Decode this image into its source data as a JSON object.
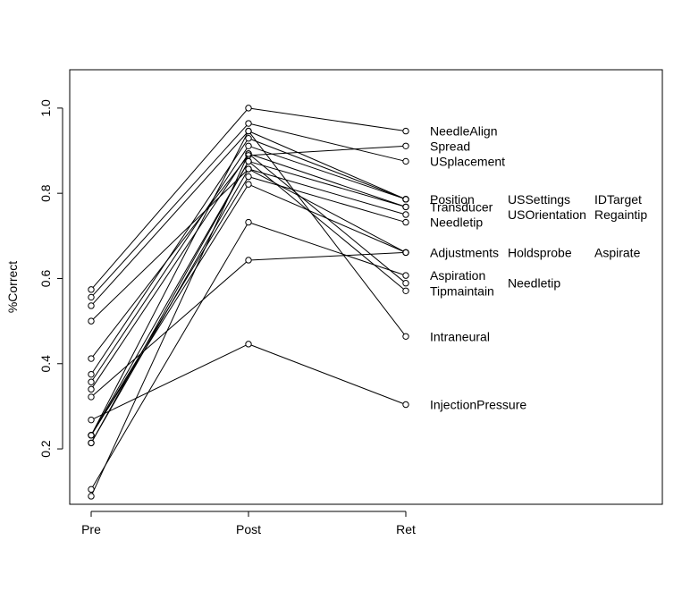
{
  "chart_data": {
    "type": "line",
    "title": "",
    "xlabel": "",
    "ylabel": "%Correct",
    "categories": [
      "Pre",
      "Post",
      "Ret"
    ],
    "ylim": [
      0.07,
      1.09
    ],
    "yticks": [
      "0.2",
      "0.4",
      "0.6",
      "0.8",
      "1.0"
    ],
    "grid": false,
    "point_style": "open-circle",
    "line_color": "#000000",
    "series": [
      {
        "name": "NeedleAlign",
        "values": [
          0.574,
          1.0,
          0.946
        ]
      },
      {
        "name": "Spread",
        "values": [
          0.412,
          0.889,
          0.911
        ]
      },
      {
        "name": "USplacement",
        "values": [
          0.556,
          0.964,
          0.875
        ]
      },
      {
        "name": "Position",
        "values": [
          0.536,
          0.946,
          0.786
        ]
      },
      {
        "name": "USSettings",
        "values": [
          0.375,
          0.929,
          0.786
        ]
      },
      {
        "name": "IDTarget",
        "values": [
          0.357,
          0.911,
          0.786
        ]
      },
      {
        "name": "Transducer",
        "values": [
          0.34,
          0.893,
          0.768
        ]
      },
      {
        "name": "USOrientation",
        "values": [
          0.232,
          0.875,
          0.768
        ]
      },
      {
        "name": "Regaintip",
        "values": [
          0.214,
          0.857,
          0.75
        ]
      },
      {
        "name": "Needletip",
        "values": [
          0.232,
          0.839,
          0.732
        ]
      },
      {
        "name": "Adjustments",
        "values": [
          0.322,
          0.643,
          0.661
        ]
      },
      {
        "name": "Holdsprobe",
        "values": [
          0.5,
          0.857,
          0.661
        ]
      },
      {
        "name": "Aspirate",
        "values": [
          0.232,
          0.821,
          0.661
        ]
      },
      {
        "name": "Aspiration",
        "values": [
          0.105,
          0.732,
          0.607
        ]
      },
      {
        "name": "Needletip",
        "values": [
          0.089,
          0.893,
          0.589
        ]
      },
      {
        "name": "Tipmaintain",
        "values": [
          0.214,
          0.875,
          0.571
        ]
      },
      {
        "name": "Intraneural",
        "values": [
          0.232,
          0.946,
          0.464
        ]
      },
      {
        "name": "InjectionPressure",
        "values": [
          0.268,
          0.446,
          0.304
        ]
      }
    ],
    "annotations": [
      {
        "text": "NeedleAlign",
        "value": 0.946,
        "column": 1
      },
      {
        "text": "Spread",
        "value": 0.911,
        "column": 1
      },
      {
        "text": "USplacement",
        "value": 0.875,
        "column": 1
      },
      {
        "text": "Position",
        "value": 0.786,
        "column": 1
      },
      {
        "text": "Transducer",
        "value": 0.768,
        "column": 1
      },
      {
        "text": "Needletip",
        "value": 0.732,
        "column": 1
      },
      {
        "text": "Adjustments",
        "value": 0.661,
        "column": 1
      },
      {
        "text": "Aspiration",
        "value": 0.607,
        "column": 1
      },
      {
        "text": "Tipmaintain",
        "value": 0.571,
        "column": 1
      },
      {
        "text": "Intraneural",
        "value": 0.464,
        "column": 1
      },
      {
        "text": "InjectionPressure",
        "value": 0.304,
        "column": 1
      },
      {
        "text": "USSettings",
        "value": 0.786,
        "column": 2
      },
      {
        "text": "USOrientation",
        "value": 0.75,
        "column": 2
      },
      {
        "text": "Holdsprobe",
        "value": 0.661,
        "column": 2
      },
      {
        "text": "Needletip",
        "value": 0.589,
        "column": 2
      },
      {
        "text": "IDTarget",
        "value": 0.786,
        "column": 3
      },
      {
        "text": "Regaintip",
        "value": 0.75,
        "column": 3
      },
      {
        "text": "Aspirate",
        "value": 0.661,
        "column": 3
      }
    ]
  }
}
